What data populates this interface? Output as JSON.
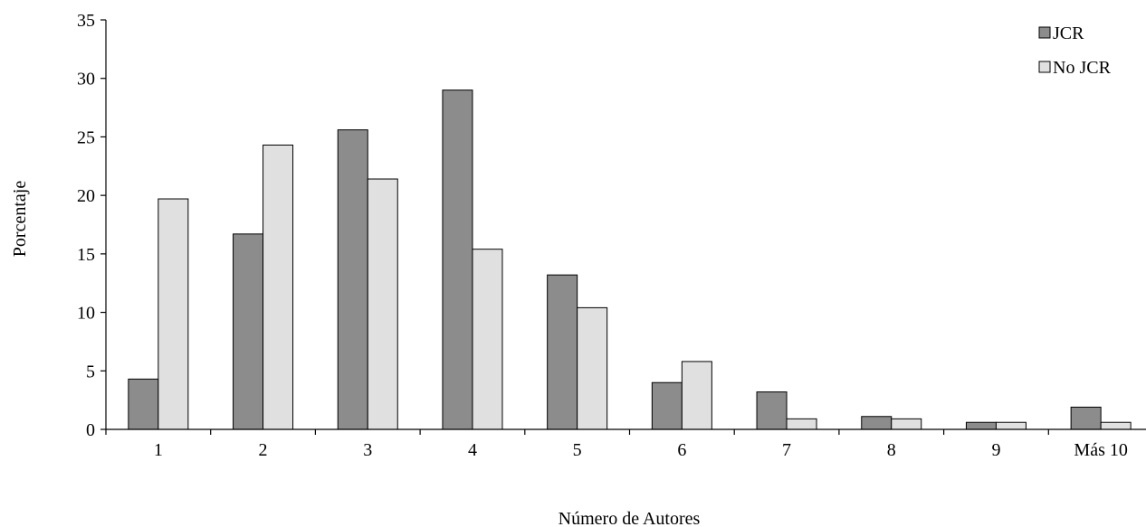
{
  "chart_data": {
    "type": "bar",
    "title": "",
    "xlabel": "Número de Autores",
    "ylabel": "Porcentaje",
    "categories": [
      "1",
      "2",
      "3",
      "4",
      "5",
      "6",
      "7",
      "8",
      "9",
      "Más 10"
    ],
    "yticks": [
      "0",
      "5",
      "10",
      "15",
      "20",
      "25",
      "30",
      "35"
    ],
    "ylim": [
      0,
      35
    ],
    "grid": false,
    "legend_position": "top-right",
    "series": [
      {
        "name": "JCR",
        "color": "#8c8c8c",
        "values": [
          4.3,
          16.7,
          25.6,
          29.0,
          13.2,
          4.0,
          3.2,
          1.1,
          0.6,
          1.9
        ]
      },
      {
        "name": "No JCR",
        "color": "#e0e0e0",
        "values": [
          19.7,
          24.3,
          21.4,
          15.4,
          10.4,
          5.8,
          0.9,
          0.9,
          0.6,
          0.6
        ]
      }
    ]
  }
}
